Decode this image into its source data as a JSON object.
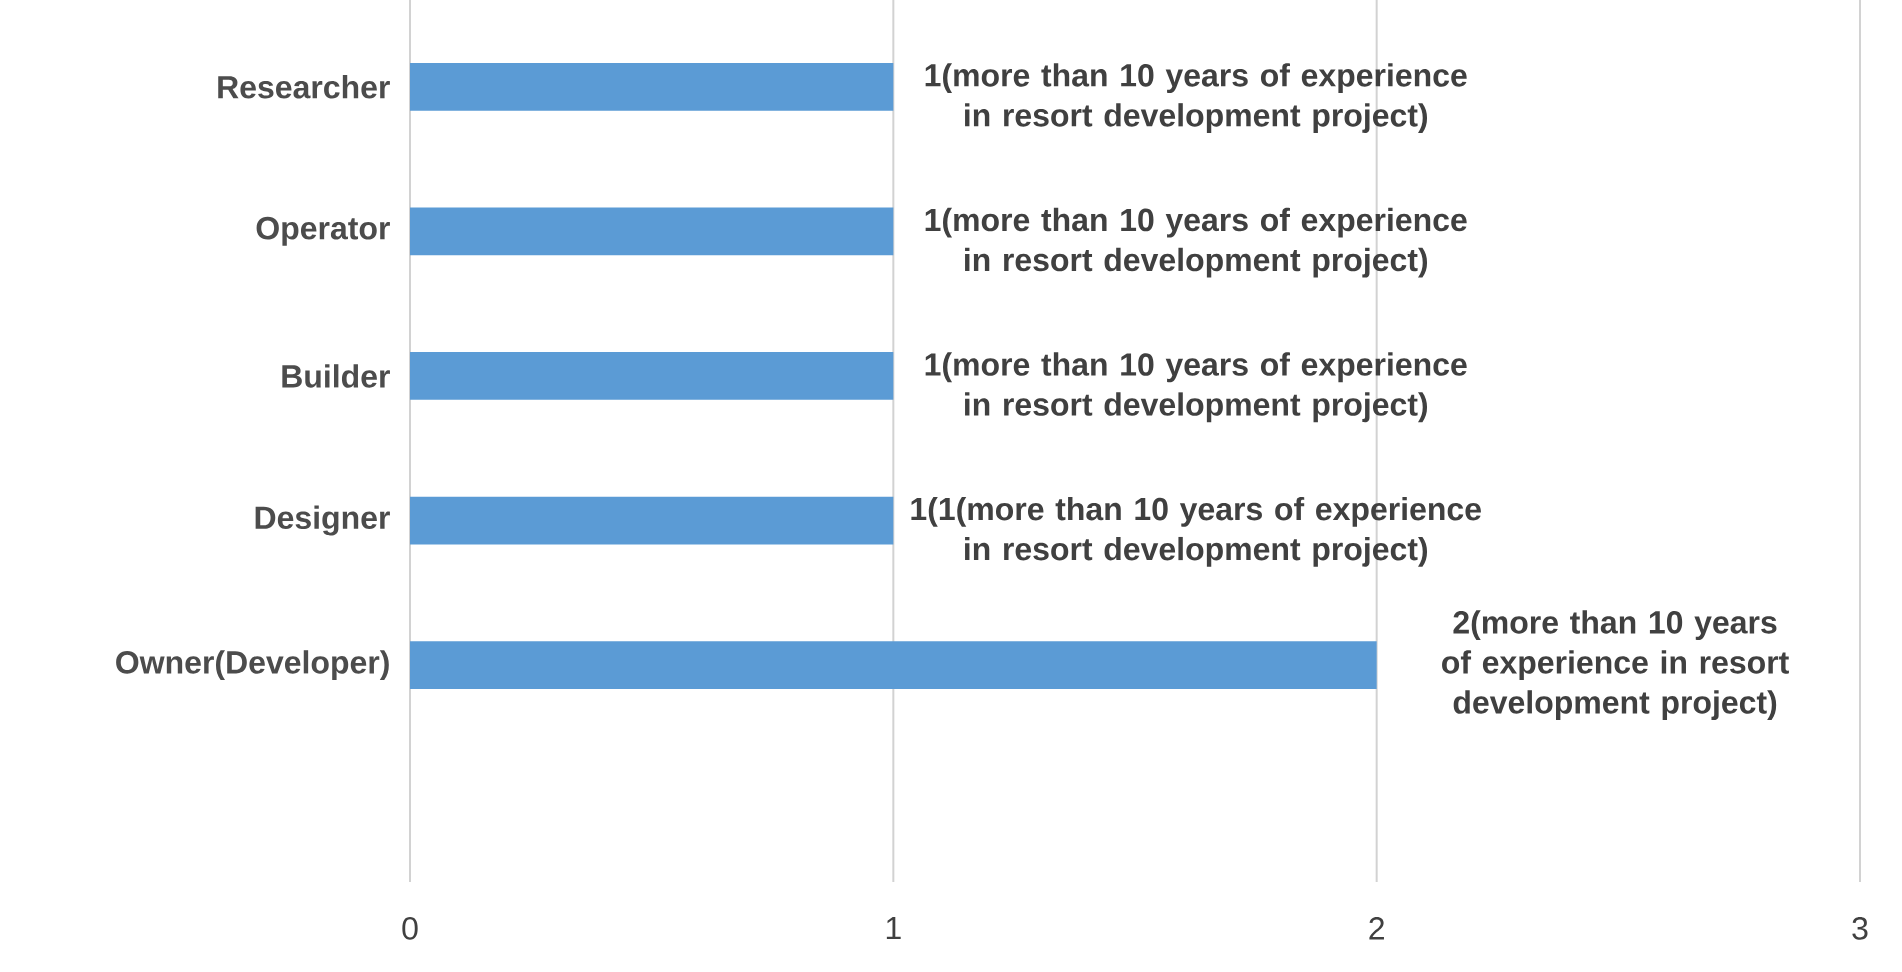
{
  "chart_data": {
    "type": "bar",
    "orientation": "horizontal",
    "categories": [
      "Researcher",
      "Operator",
      "Builder",
      "Designer",
      "Owner(Developer)"
    ],
    "values": [
      1,
      1,
      1,
      1,
      2
    ],
    "value_labels": [
      "1(more than 10 years of experience in resort development project)",
      "1(more than 10 years of experience in resort development project)",
      "1(more than 10 years of experience in resort development project)",
      "1(1(more than 10 years of experience in resort development project)",
      "2(more than 10 years of experience in resort development project)"
    ],
    "color": "#5b9bd5",
    "xlim": [
      0,
      3
    ],
    "xticks": [
      0,
      1,
      2,
      3
    ],
    "grid": "x"
  }
}
